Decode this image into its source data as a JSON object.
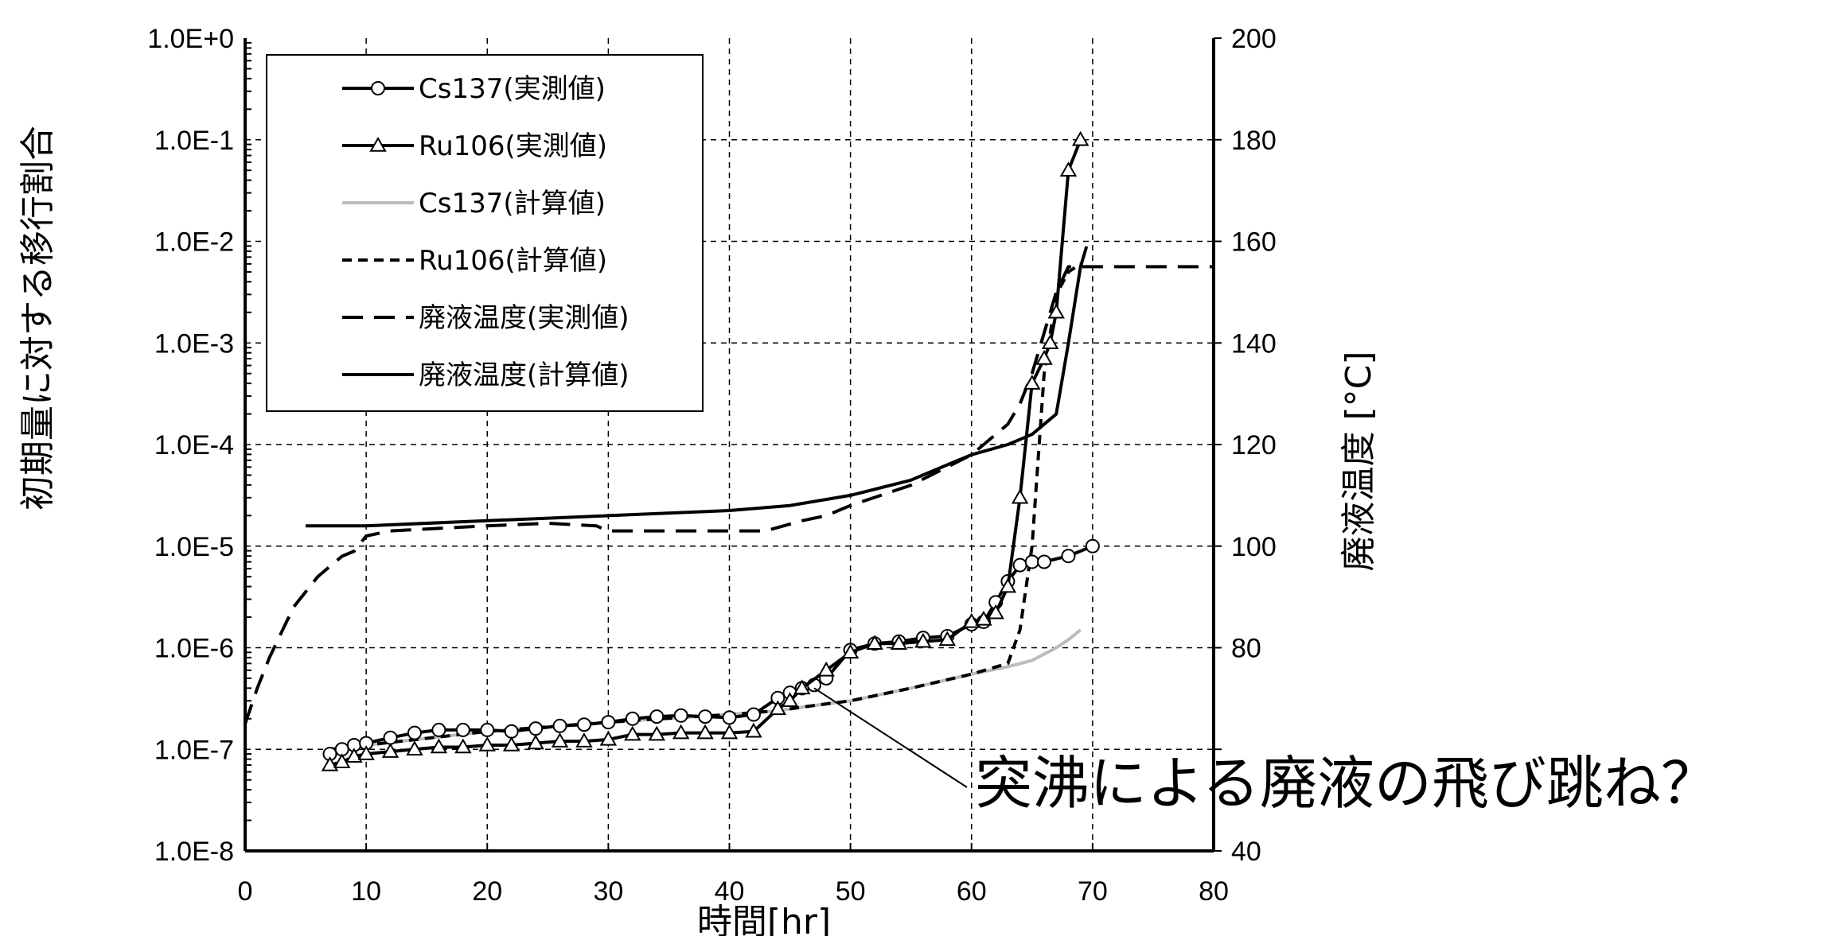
{
  "chart_data": {
    "type": "line",
    "xlabel": "時間[hr]",
    "ylabel_left": "初期量に対する移行割合",
    "ylabel_right": "廃液温度 [°C]",
    "xlim": [
      0,
      80
    ],
    "x_ticks": [
      "0",
      "10",
      "20",
      "30",
      "40",
      "50",
      "60",
      "70",
      "80"
    ],
    "y_left_scale": "log",
    "y_left_ticks": [
      "1.0E+0",
      "1.0E-1",
      "1.0E-2",
      "1.0E-3",
      "1.0E-4",
      "1.0E-5",
      "1.0E-6",
      "1.0E-7",
      "1.0E-8"
    ],
    "y_right_ticks": [
      "200",
      "180",
      "160",
      "140",
      "120",
      "100",
      "80",
      "",
      "40"
    ],
    "ylim_left": [
      1e-08,
      1
    ],
    "ylim_right": [
      40,
      200
    ],
    "grid": true,
    "legend_placement": "top-left",
    "annotation": {
      "text": "突沸による廃液の飛び跳ね？",
      "points_to": {
        "x": 47,
        "y": 4e-07
      }
    },
    "series": [
      {
        "name": "Cs137(実測値)",
        "axis": "left",
        "style": "solid-circle",
        "color": "#000000",
        "x": [
          7,
          8,
          9,
          10,
          12,
          14,
          16,
          18,
          20,
          22,
          24,
          26,
          28,
          30,
          32,
          34,
          36,
          38,
          40,
          42,
          44,
          45,
          46,
          47,
          48,
          50,
          52,
          54,
          56,
          58,
          60,
          61,
          62,
          63,
          64,
          65,
          66,
          68,
          70
        ],
        "y": [
          9e-08,
          1e-07,
          1.1e-07,
          1.15e-07,
          1.3e-07,
          1.45e-07,
          1.55e-07,
          1.55e-07,
          1.55e-07,
          1.5e-07,
          1.6e-07,
          1.7e-07,
          1.75e-07,
          1.85e-07,
          2e-07,
          2.1e-07,
          2.15e-07,
          2.1e-07,
          2.05e-07,
          2.2e-07,
          3.2e-07,
          3.6e-07,
          4e-07,
          4.3e-07,
          5e-07,
          9.5e-07,
          1.1e-06,
          1.15e-06,
          1.25e-06,
          1.3e-06,
          1.7e-06,
          1.8e-06,
          2.8e-06,
          4.5e-06,
          6.5e-06,
          7e-06,
          7e-06,
          8e-06,
          1e-05
        ]
      },
      {
        "name": "Ru106(実測値)",
        "axis": "left",
        "style": "solid-triangle",
        "color": "#000000",
        "x": [
          7,
          8,
          9,
          10,
          12,
          14,
          16,
          18,
          20,
          22,
          24,
          26,
          28,
          30,
          32,
          34,
          36,
          38,
          40,
          42,
          44,
          45,
          46,
          48,
          50,
          52,
          54,
          56,
          58,
          60,
          61,
          62,
          63,
          64,
          65,
          66,
          66.5,
          67,
          68,
          69
        ],
        "y": [
          7e-08,
          7.5e-08,
          8.5e-08,
          9e-08,
          9.5e-08,
          1e-07,
          1.05e-07,
          1.05e-07,
          1.1e-07,
          1.1e-07,
          1.15e-07,
          1.2e-07,
          1.2e-07,
          1.25e-07,
          1.4e-07,
          1.4e-07,
          1.45e-07,
          1.45e-07,
          1.45e-07,
          1.5e-07,
          2.5e-07,
          3e-07,
          4e-07,
          6e-07,
          9e-07,
          1.1e-06,
          1.1e-06,
          1.15e-06,
          1.2e-06,
          1.8e-06,
          1.9e-06,
          2.2e-06,
          4e-06,
          3e-05,
          0.0004,
          0.0007,
          0.001,
          0.002,
          0.05,
          0.1
        ]
      },
      {
        "name": "Cs137(計算値)",
        "axis": "left",
        "style": "solid-gray",
        "color": "#bbbbbb",
        "x": [
          7,
          10,
          20,
          30,
          40,
          44,
          46,
          48,
          50,
          55,
          60,
          63,
          65,
          67,
          68,
          69
        ],
        "y": [
          1e-07,
          1.1e-07,
          1.5e-07,
          1.85e-07,
          2.2e-07,
          2.4e-07,
          2.6e-07,
          2.8e-07,
          3e-07,
          4e-07,
          5.5e-07,
          6.5e-07,
          7.5e-07,
          1e-06,
          1.2e-06,
          1.5e-06
        ]
      },
      {
        "name": "Ru106(計算値)",
        "axis": "left",
        "style": "short-dash",
        "color": "#000000",
        "x": [
          7,
          10,
          20,
          30,
          40,
          44,
          46,
          48,
          50,
          55,
          60,
          63,
          64,
          65,
          66,
          67,
          68,
          69
        ],
        "y": [
          1e-07,
          1.1e-07,
          1.5e-07,
          1.85e-07,
          2.2e-07,
          2.4e-07,
          2.6e-07,
          2.8e-07,
          3e-07,
          4e-07,
          5.5e-07,
          7e-07,
          1.5e-06,
          1e-05,
          0.0005,
          0.003,
          0.005,
          0.006
        ]
      },
      {
        "name": "廃液温度(実測値)",
        "axis": "right",
        "style": "long-dash",
        "color": "#000000",
        "x": [
          0,
          1,
          2,
          3,
          4,
          5,
          6,
          7,
          8,
          9,
          10,
          12,
          20,
          25,
          29,
          30,
          35,
          40,
          43,
          46,
          48,
          50,
          55,
          60,
          63,
          64,
          65,
          66,
          67,
          68,
          69,
          80
        ],
        "y": [
          65,
          72,
          78,
          83,
          88,
          91,
          94,
          96,
          98,
          99,
          102,
          103,
          104,
          104.5,
          104,
          103,
          103,
          103,
          103,
          105,
          106,
          108,
          112,
          118,
          124,
          128,
          134,
          142,
          150,
          155,
          155,
          155
        ]
      },
      {
        "name": "廃液温度(計算値)",
        "axis": "right",
        "style": "solid",
        "color": "#000000",
        "x": [
          5,
          10,
          20,
          30,
          40,
          45,
          50,
          55,
          58,
          60,
          63,
          65,
          67,
          68,
          69,
          69.5
        ],
        "y": [
          104,
          104,
          105,
          106,
          107,
          108,
          110,
          113,
          116,
          118,
          120,
          122,
          126,
          140,
          155,
          159
        ]
      }
    ]
  }
}
